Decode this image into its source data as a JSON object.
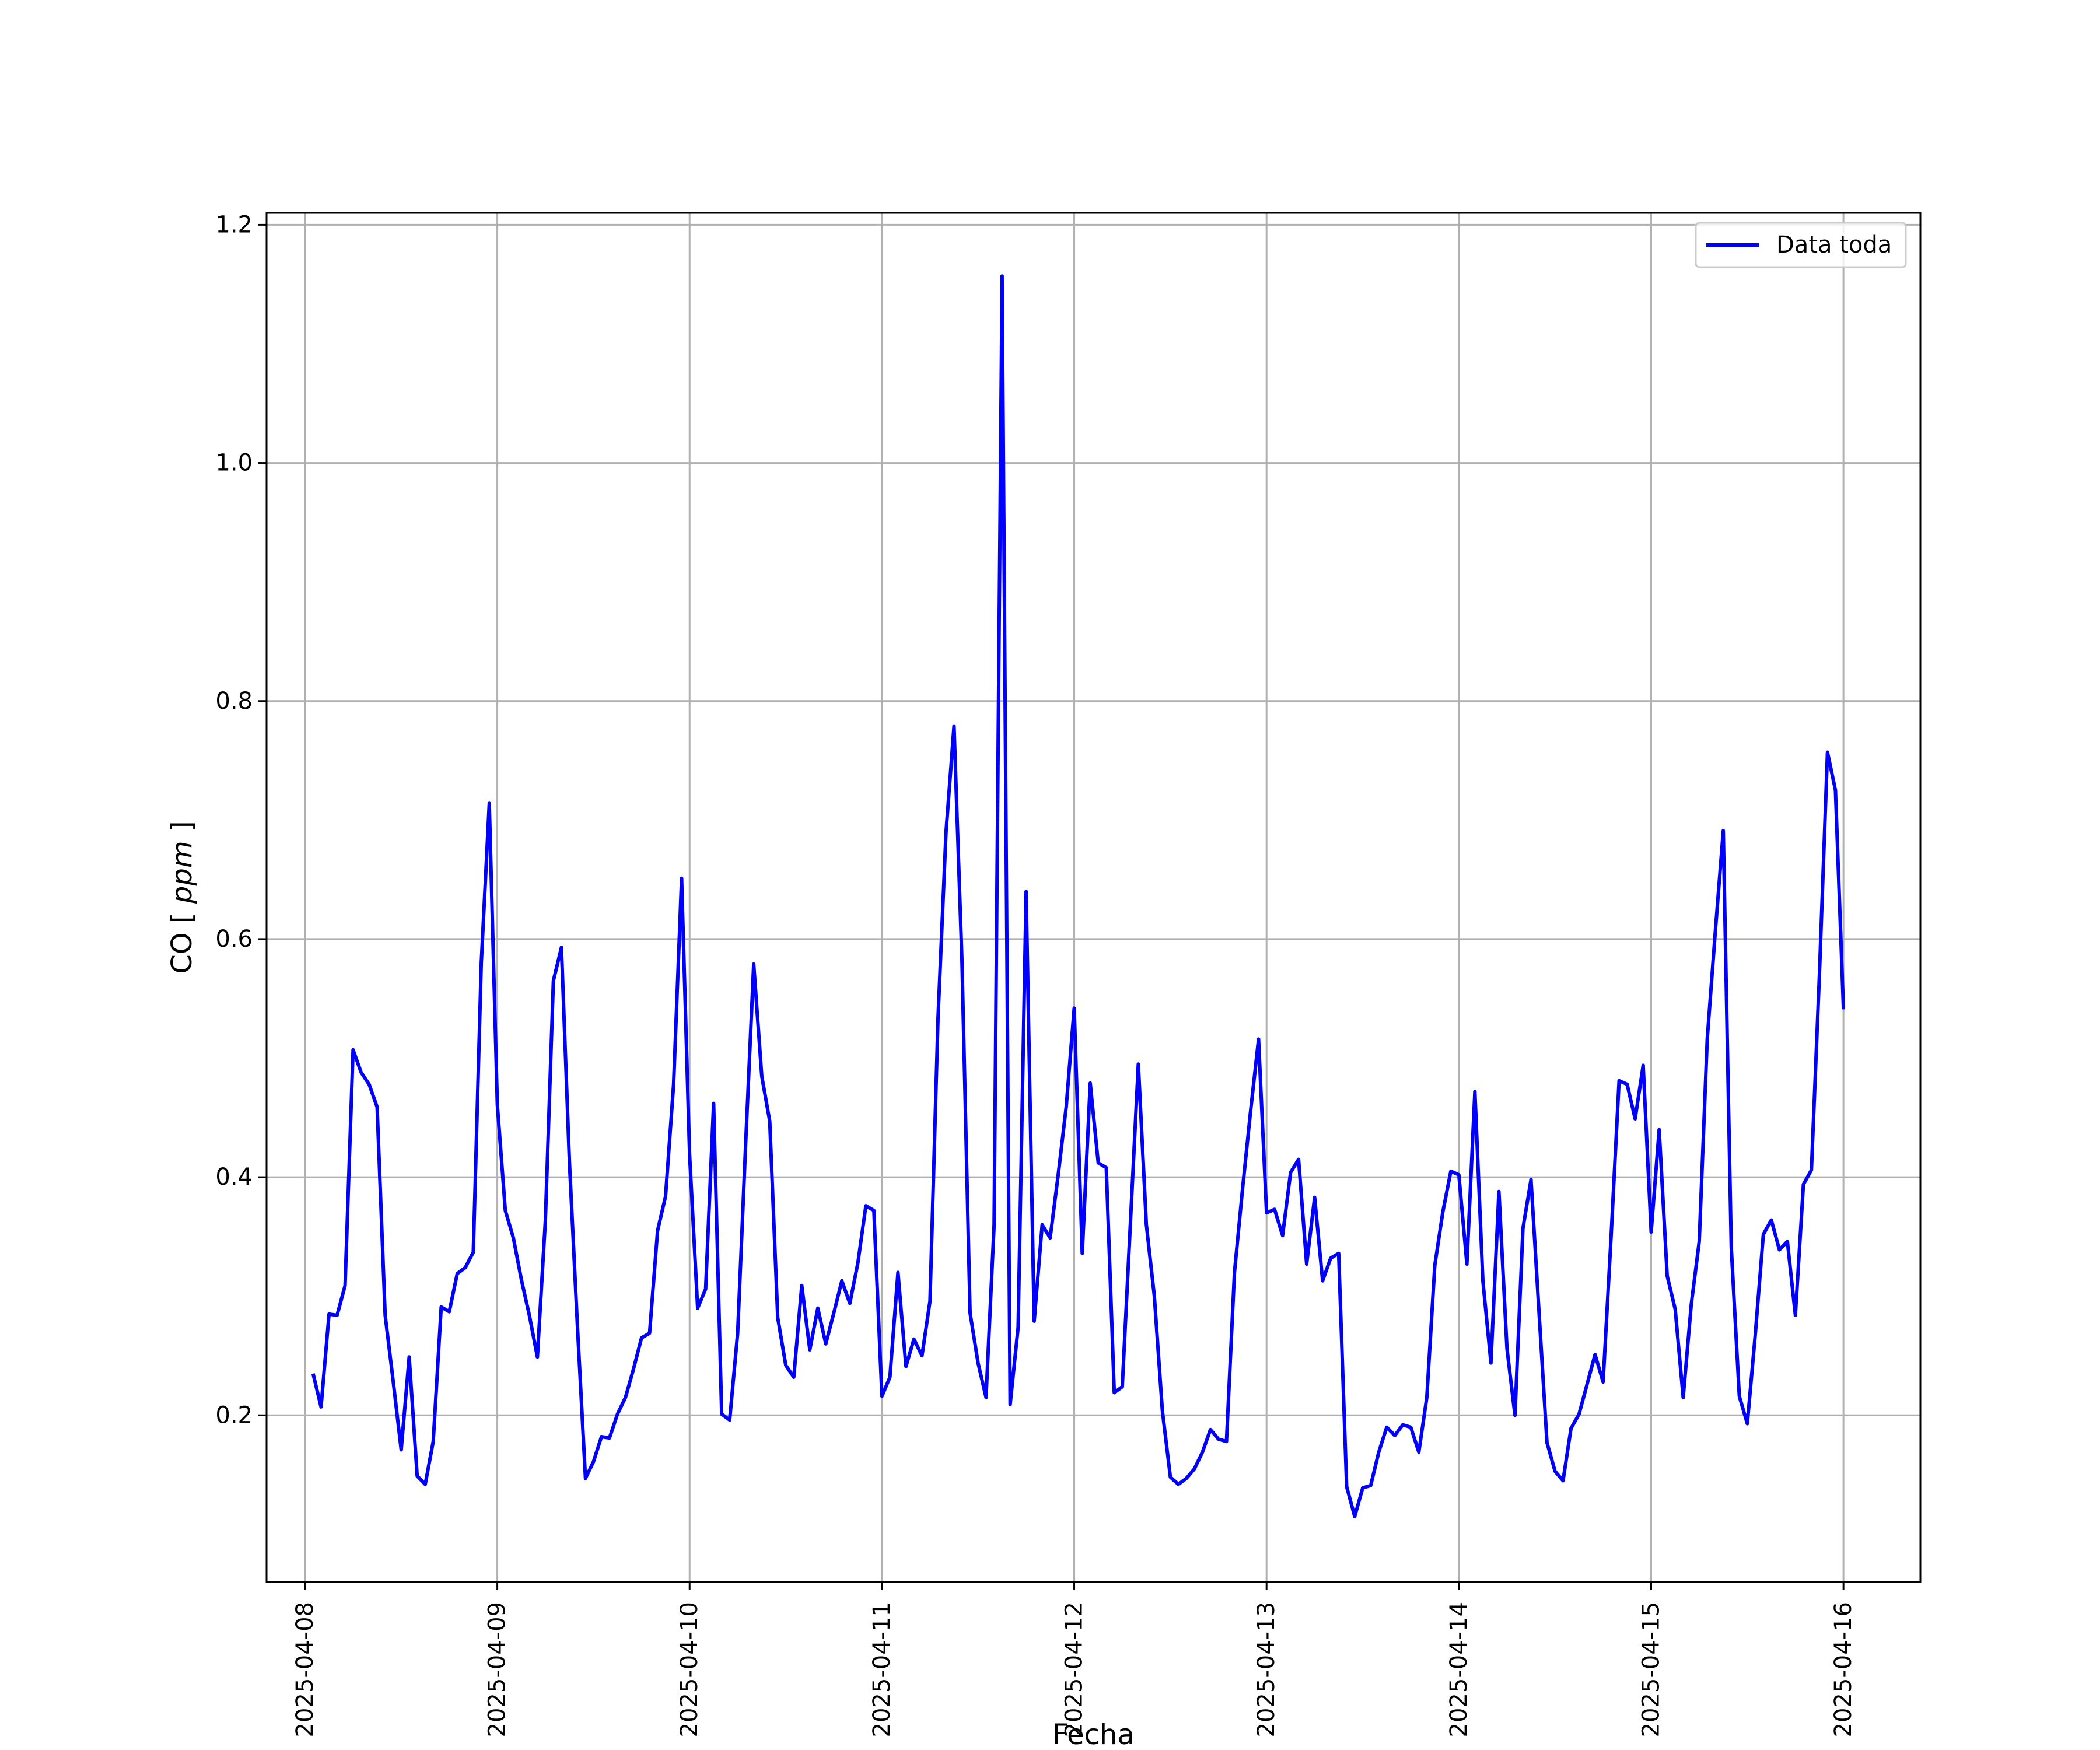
{
  "chart_data": {
    "type": "line",
    "title": "",
    "xlabel": "Fecha",
    "ylabel_text": "CO",
    "ylabel_unit": "ppm",
    "xlim": [
      "2025-04-07T19:12",
      "2025-04-16T09:36"
    ],
    "ylim": [
      0.06,
      1.21
    ],
    "x_ticks": [
      "2025-04-08",
      "2025-04-09",
      "2025-04-10",
      "2025-04-11",
      "2025-04-12",
      "2025-04-13",
      "2025-04-14",
      "2025-04-15",
      "2025-04-16"
    ],
    "y_ticks": [
      0.2,
      0.4,
      0.6,
      0.8,
      1.0,
      1.2
    ],
    "y_tick_labels": [
      "0.2",
      "0.4",
      "0.6",
      "0.8",
      "1.0",
      "1.2"
    ],
    "grid": true,
    "legend_position": "top-right",
    "series": [
      {
        "name": "Data toda",
        "color": "#0000ff",
        "x": [
          "2025-04-08T01:00",
          "2025-04-08T02:00",
          "2025-04-08T03:00",
          "2025-04-08T04:00",
          "2025-04-08T05:00",
          "2025-04-08T06:00",
          "2025-04-08T07:00",
          "2025-04-08T08:00",
          "2025-04-08T09:00",
          "2025-04-08T10:00",
          "2025-04-08T11:00",
          "2025-04-08T12:00",
          "2025-04-08T13:00",
          "2025-04-08T14:00",
          "2025-04-08T15:00",
          "2025-04-08T16:00",
          "2025-04-08T17:00",
          "2025-04-08T18:00",
          "2025-04-08T19:00",
          "2025-04-08T20:00",
          "2025-04-08T21:00",
          "2025-04-08T22:00",
          "2025-04-08T23:00",
          "2025-04-09T00:00",
          "2025-04-09T01:00",
          "2025-04-09T02:00",
          "2025-04-09T03:00",
          "2025-04-09T04:00",
          "2025-04-09T05:00",
          "2025-04-09T06:00",
          "2025-04-09T07:00",
          "2025-04-09T08:00",
          "2025-04-09T09:00",
          "2025-04-09T10:00",
          "2025-04-09T11:00",
          "2025-04-09T12:00",
          "2025-04-09T13:00",
          "2025-04-09T14:00",
          "2025-04-09T15:00",
          "2025-04-09T16:00",
          "2025-04-09T17:00",
          "2025-04-09T18:00",
          "2025-04-09T19:00",
          "2025-04-09T20:00",
          "2025-04-09T21:00",
          "2025-04-09T22:00",
          "2025-04-09T23:00",
          "2025-04-10T00:00",
          "2025-04-10T01:00",
          "2025-04-10T02:00",
          "2025-04-10T03:00",
          "2025-04-10T04:00",
          "2025-04-10T05:00",
          "2025-04-10T06:00",
          "2025-04-10T07:00",
          "2025-04-10T08:00",
          "2025-04-10T09:00",
          "2025-04-10T10:00",
          "2025-04-10T11:00",
          "2025-04-10T12:00",
          "2025-04-10T13:00",
          "2025-04-10T14:00",
          "2025-04-10T15:00",
          "2025-04-10T16:00",
          "2025-04-10T17:00",
          "2025-04-10T18:00",
          "2025-04-10T19:00",
          "2025-04-10T20:00",
          "2025-04-10T21:00",
          "2025-04-10T22:00",
          "2025-04-10T23:00",
          "2025-04-11T00:00",
          "2025-04-11T01:00",
          "2025-04-11T02:00",
          "2025-04-11T03:00",
          "2025-04-11T04:00",
          "2025-04-11T05:00",
          "2025-04-11T06:00",
          "2025-04-11T07:00",
          "2025-04-11T08:00",
          "2025-04-11T09:00",
          "2025-04-11T10:00",
          "2025-04-11T11:00",
          "2025-04-11T12:00",
          "2025-04-11T13:00",
          "2025-04-11T14:00",
          "2025-04-11T15:00",
          "2025-04-11T16:00",
          "2025-04-11T17:00",
          "2025-04-11T18:00",
          "2025-04-11T19:00",
          "2025-04-11T20:00",
          "2025-04-11T21:00",
          "2025-04-11T22:00",
          "2025-04-11T23:00",
          "2025-04-12T00:00",
          "2025-04-12T01:00",
          "2025-04-12T02:00",
          "2025-04-12T03:00",
          "2025-04-12T04:00",
          "2025-04-12T05:00",
          "2025-04-12T06:00",
          "2025-04-12T07:00",
          "2025-04-12T08:00",
          "2025-04-12T09:00",
          "2025-04-12T10:00",
          "2025-04-12T11:00",
          "2025-04-12T12:00",
          "2025-04-12T13:00",
          "2025-04-12T14:00",
          "2025-04-12T15:00",
          "2025-04-12T16:00",
          "2025-04-12T17:00",
          "2025-04-12T18:00",
          "2025-04-12T19:00",
          "2025-04-12T20:00",
          "2025-04-12T21:00",
          "2025-04-12T22:00",
          "2025-04-12T23:00",
          "2025-04-13T00:00",
          "2025-04-13T01:00",
          "2025-04-13T02:00",
          "2025-04-13T03:00",
          "2025-04-13T04:00",
          "2025-04-13T05:00",
          "2025-04-13T06:00",
          "2025-04-13T07:00",
          "2025-04-13T08:00",
          "2025-04-13T09:00",
          "2025-04-13T10:00",
          "2025-04-13T11:00",
          "2025-04-13T12:00",
          "2025-04-13T13:00",
          "2025-04-13T14:00",
          "2025-04-13T15:00",
          "2025-04-13T16:00",
          "2025-04-13T17:00",
          "2025-04-13T18:00",
          "2025-04-13T19:00",
          "2025-04-13T20:00",
          "2025-04-13T21:00",
          "2025-04-13T22:00",
          "2025-04-13T23:00",
          "2025-04-14T00:00",
          "2025-04-14T01:00",
          "2025-04-14T02:00",
          "2025-04-14T03:00",
          "2025-04-14T04:00",
          "2025-04-14T05:00",
          "2025-04-14T06:00",
          "2025-04-14T07:00",
          "2025-04-14T08:00",
          "2025-04-14T09:00",
          "2025-04-14T10:00",
          "2025-04-14T11:00",
          "2025-04-14T12:00",
          "2025-04-14T13:00",
          "2025-04-14T14:00",
          "2025-04-14T15:00",
          "2025-04-14T16:00",
          "2025-04-14T17:00",
          "2025-04-14T18:00",
          "2025-04-14T19:00",
          "2025-04-14T20:00",
          "2025-04-14T21:00",
          "2025-04-14T22:00",
          "2025-04-14T23:00",
          "2025-04-15T00:00",
          "2025-04-15T01:00",
          "2025-04-15T02:00",
          "2025-04-15T03:00",
          "2025-04-15T04:00",
          "2025-04-15T05:00",
          "2025-04-15T06:00",
          "2025-04-15T07:00",
          "2025-04-15T08:00",
          "2025-04-15T09:00",
          "2025-04-15T10:00",
          "2025-04-15T11:00",
          "2025-04-15T12:00",
          "2025-04-15T13:00",
          "2025-04-15T14:00",
          "2025-04-15T15:00",
          "2025-04-15T16:00",
          "2025-04-15T17:00",
          "2025-04-15T18:00",
          "2025-04-15T19:00",
          "2025-04-15T20:00",
          "2025-04-15T21:00",
          "2025-04-15T22:00",
          "2025-04-15T23:00",
          "2025-04-16T00:00"
        ],
        "y": [
          0.235,
          0.207,
          0.285,
          0.284,
          0.309,
          0.507,
          0.488,
          0.478,
          0.459,
          0.284,
          0.229,
          0.171,
          0.249,
          0.149,
          0.142,
          0.178,
          0.291,
          0.287,
          0.319,
          0.324,
          0.337,
          0.58,
          0.714,
          0.461,
          0.372,
          0.349,
          0.314,
          0.284,
          0.249,
          0.364,
          0.565,
          0.593,
          0.413,
          0.275,
          0.147,
          0.161,
          0.182,
          0.181,
          0.201,
          0.215,
          0.239,
          0.265,
          0.269,
          0.355,
          0.384,
          0.478,
          0.651,
          0.419,
          0.29,
          0.306,
          0.462,
          0.201,
          0.196,
          0.269,
          0.429,
          0.579,
          0.485,
          0.447,
          0.282,
          0.242,
          0.232,
          0.309,
          0.255,
          0.29,
          0.26,
          0.286,
          0.313,
          0.294,
          0.328,
          0.376,
          0.372,
          0.216,
          0.232,
          0.32,
          0.241,
          0.264,
          0.25,
          0.296,
          0.533,
          0.69,
          0.779,
          0.58,
          0.286,
          0.244,
          0.215,
          0.36,
          1.157,
          0.209,
          0.274,
          0.64,
          0.279,
          0.36,
          0.349,
          0.402,
          0.459,
          0.542,
          0.336,
          0.479,
          0.412,
          0.408,
          0.219,
          0.224,
          0.36,
          0.495,
          0.36,
          0.3,
          0.204,
          0.148,
          0.142,
          0.147,
          0.155,
          0.169,
          0.188,
          0.18,
          0.178,
          0.32,
          0.39,
          0.455,
          0.516,
          0.37,
          0.373,
          0.351,
          0.404,
          0.415,
          0.327,
          0.383,
          0.313,
          0.332,
          0.336,
          0.14,
          0.115,
          0.139,
          0.141,
          0.169,
          0.19,
          0.183,
          0.192,
          0.19,
          0.169,
          0.215,
          0.326,
          0.371,
          0.405,
          0.402,
          0.327,
          0.472,
          0.313,
          0.244,
          0.388,
          0.256,
          0.2,
          0.357,
          0.398,
          0.287,
          0.177,
          0.153,
          0.145,
          0.189,
          0.201,
          0.226,
          0.251,
          0.228,
          0.35,
          0.481,
          0.478,
          0.449,
          0.494,
          0.354,
          0.44,
          0.317,
          0.289,
          0.215,
          0.293,
          0.346,
          0.516,
          0.606,
          0.691,
          0.341,
          0.216,
          0.193,
          0.268,
          0.352,
          0.364,
          0.339,
          0.346,
          0.284,
          0.394,
          0.406,
          0.57,
          0.757,
          0.725,
          0.541
        ]
      }
    ]
  }
}
